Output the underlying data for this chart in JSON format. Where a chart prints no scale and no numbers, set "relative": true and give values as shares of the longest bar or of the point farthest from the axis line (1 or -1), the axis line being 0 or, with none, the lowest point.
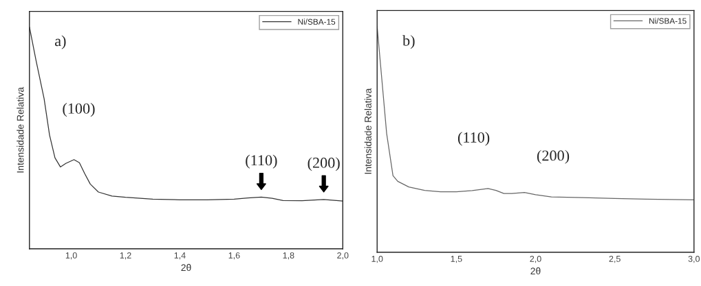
{
  "chart_data": [
    {
      "type": "line",
      "relative": true,
      "xlabel": "2θ",
      "ylabel": "Intensidade Relativa",
      "legend": "top right",
      "xlim": [
        0.846,
        2.0
      ],
      "xticks": [
        {
          "value": 1.0,
          "label": "1,0"
        },
        {
          "value": 1.2,
          "label": "1,2"
        },
        {
          "value": 1.4,
          "label": "1,4"
        },
        {
          "value": 1.6,
          "label": "1,6"
        },
        {
          "value": 1.8,
          "label": "1,8"
        },
        {
          "value": 2.0,
          "label": "2,0"
        }
      ],
      "series": [
        {
          "name": "Ni/SBA-15",
          "color": "#333333",
          "x": [
            0.846,
            0.87,
            0.9,
            0.92,
            0.94,
            0.96,
            0.98,
            1.01,
            1.03,
            1.05,
            1.07,
            1.1,
            1.15,
            1.2,
            1.3,
            1.4,
            1.5,
            1.6,
            1.65,
            1.7,
            1.74,
            1.78,
            1.85,
            1.93,
            2.0
          ],
          "values": [
            1.0,
            0.851,
            0.677,
            0.513,
            0.41,
            0.369,
            0.385,
            0.402,
            0.388,
            0.338,
            0.292,
            0.256,
            0.238,
            0.232,
            0.224,
            0.221,
            0.221,
            0.224,
            0.229,
            0.233,
            0.228,
            0.218,
            0.217,
            0.222,
            0.215
          ]
        }
      ],
      "annotations": [
        "a)",
        {
          "text": "(100)",
          "x": 1.01,
          "y": 0.402
        },
        {
          "text": "(110)",
          "x": 1.7,
          "y": 0.233
        },
        {
          "text": "(200)",
          "x": 1.93,
          "y": 0.222
        }
      ]
    },
    {
      "type": "line",
      "relative": true,
      "xlabel": "2θ",
      "ylabel": "Intensidade Relativa",
      "legend": "top right",
      "xlim": [
        1.0,
        3.0
      ],
      "xticks": [
        {
          "value": 1.0,
          "label": "1,0"
        },
        {
          "value": 1.5,
          "label": "1,5"
        },
        {
          "value": 2.0,
          "label": "2,0"
        },
        {
          "value": 2.5,
          "label": "2,5"
        },
        {
          "value": 3.0,
          "label": "3,0"
        }
      ],
      "series": [
        {
          "name": "Ni/SBA-15",
          "color": "#666666",
          "x": [
            1.0,
            1.03,
            1.06,
            1.1,
            1.13,
            1.2,
            1.3,
            1.4,
            1.5,
            1.6,
            1.7,
            1.75,
            1.8,
            1.85,
            1.93,
            2.0,
            2.1,
            2.3,
            2.5,
            2.7,
            3.0
          ],
          "values": [
            1.0,
            0.763,
            0.526,
            0.339,
            0.314,
            0.289,
            0.274,
            0.268,
            0.268,
            0.273,
            0.282,
            0.274,
            0.26,
            0.26,
            0.265,
            0.255,
            0.245,
            0.242,
            0.238,
            0.235,
            0.232
          ]
        }
      ],
      "annotations": [
        "b)",
        {
          "text": "(110)",
          "x": 1.7,
          "y": 0.282
        },
        {
          "text": "(200)",
          "x": 1.93,
          "y": 0.265
        }
      ]
    }
  ]
}
